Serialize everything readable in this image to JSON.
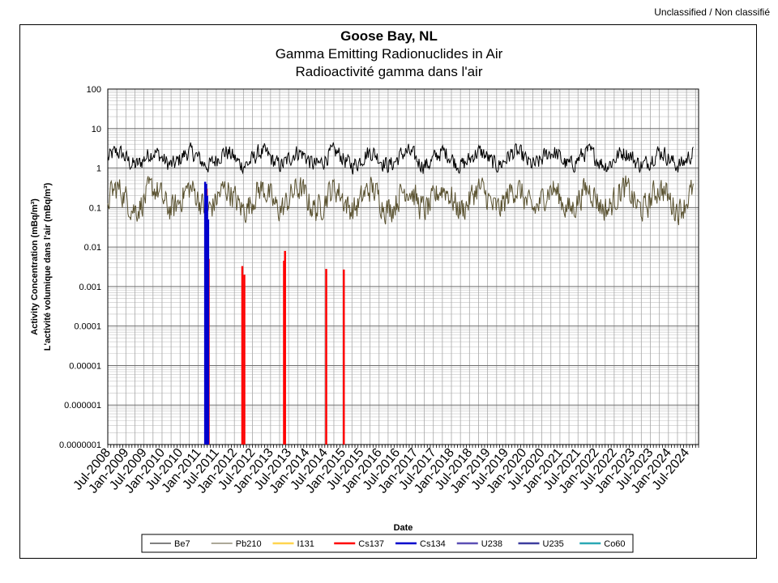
{
  "classification": "Unclassified / Non classifié",
  "chart_data": {
    "type": "line",
    "title": "Goose Bay, NL",
    "subtitle_en": "Gamma Emitting Radionuclides in Air",
    "subtitle_fr": "Radioactivité gamma dans l'air",
    "xlabel": "Date",
    "ylabel_en": "Activity Concentration  (mBq/m³)",
    "ylabel_fr": "L'activité volumique dans l'air (mBq/m³)",
    "yscale": "log",
    "ylim": [
      1e-07,
      100
    ],
    "y_ticks": [
      "100",
      "10",
      "1",
      "0.1",
      "0.01",
      "0.001",
      "0.0001",
      "0.00001",
      "0.000001",
      "0.0000001"
    ],
    "x_range": [
      "2008-07",
      "2024-11"
    ],
    "x_ticks": [
      "Jul-2008",
      "Jan-2009",
      "Jul-2009",
      "Jan-2010",
      "Jul-2010",
      "Jan-2011",
      "Jul-2011",
      "Jan-2012",
      "Jul-2012",
      "Jan-2013",
      "Jul-2013",
      "Jan-2014",
      "Jul-2014",
      "Jan-2015",
      "Jul-2015",
      "Jan-2016",
      "Jul-2016",
      "Jan-2017",
      "Jul-2017",
      "Jan-2018",
      "Jul-2018",
      "Jan-2019",
      "Jul-2019",
      "Jan-2020",
      "Jul-2020",
      "Jan-2021",
      "Jul-2021",
      "Jan-2022",
      "Jul-2022",
      "Jan-2023",
      "Jul-2023",
      "Jan-2024",
      "Jul-2024"
    ],
    "grid": true,
    "legend_position": "bottom",
    "series": [
      {
        "name": "Be7",
        "color": "#000000",
        "kind": "continuous",
        "typical_range": [
          0.6,
          5.0
        ],
        "note_values": "weekly concentrations fluctuating roughly between 0.6 and 5 mBq/m³"
      },
      {
        "name": "Pb210",
        "color": "#5a5230",
        "kind": "continuous",
        "typical_range": [
          0.03,
          0.9
        ],
        "note_values": "weekly concentrations fluctuating roughly between 0.03 and 0.9 mBq/m³"
      },
      {
        "name": "I131",
        "color": "#ffd54f",
        "kind": "spikes",
        "points": []
      },
      {
        "name": "Cs137",
        "color": "#ff0000",
        "kind": "spikes",
        "points": [
          {
            "x": "2011-03-25",
            "y": 0.3
          },
          {
            "x": "2011-04-05",
            "y": 0.03
          },
          {
            "x": "2011-04-15",
            "y": 0.005
          },
          {
            "x": "2012-03-20",
            "y": 0.0033
          },
          {
            "x": "2012-04-10",
            "y": 0.002
          },
          {
            "x": "2013-05-15",
            "y": 0.0045
          },
          {
            "x": "2013-05-25",
            "y": 0.008
          },
          {
            "x": "2014-07-15",
            "y": 0.0028
          },
          {
            "x": "2015-01-10",
            "y": 0.0027
          }
        ]
      },
      {
        "name": "Cs134",
        "color": "#0000cc",
        "kind": "spikes",
        "points": [
          {
            "x": "2011-03-10",
            "y": 0.45
          },
          {
            "x": "2011-03-20",
            "y": 0.4
          },
          {
            "x": "2011-03-30",
            "y": 0.2
          },
          {
            "x": "2011-04-10",
            "y": 0.05
          }
        ]
      },
      {
        "name": "U238",
        "color": "#5b4fb5",
        "kind": "spikes",
        "points": []
      },
      {
        "name": "U235",
        "color": "#3d3d9e",
        "kind": "spikes",
        "points": []
      },
      {
        "name": "Co60",
        "color": "#2aa8b5",
        "kind": "spikes",
        "points": []
      }
    ]
  }
}
